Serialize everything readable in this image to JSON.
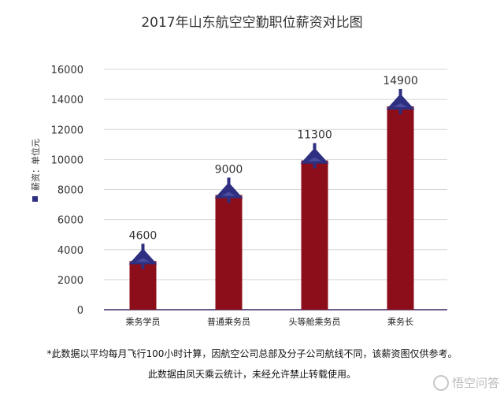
{
  "chart_data": {
    "type": "bar",
    "title": "2017年山东航空空勤职位薪资对比图",
    "ylabel": "薪资：单位元",
    "categories": [
      "乘务学员",
      "普通乘务员",
      "头等舱乘务员",
      "乘务长"
    ],
    "values": [
      4600,
      9000,
      11300,
      14900
    ],
    "data_labels": [
      "4600",
      "9000",
      "11300",
      "14900"
    ],
    "y_ticks": [
      0,
      2000,
      4000,
      6000,
      8000,
      10000,
      12000,
      14000,
      16000
    ],
    "ylim": [
      0,
      16000
    ],
    "grid": true,
    "bar_color": "#8b0e1a",
    "marker_color": "#2e2f80",
    "axis_color": "#6a5a8a"
  },
  "footnotes": {
    "line1": "*此数据以平均每月飞行100小时计算，因航空公司总部及分子公司航线不同，该薪资图仅供参考。",
    "line2": "此数据由凤天乘云统计，未经允许禁止转载使用。"
  },
  "watermark": {
    "text": "悟空问答",
    "icon": "wukong-logo-icon"
  }
}
